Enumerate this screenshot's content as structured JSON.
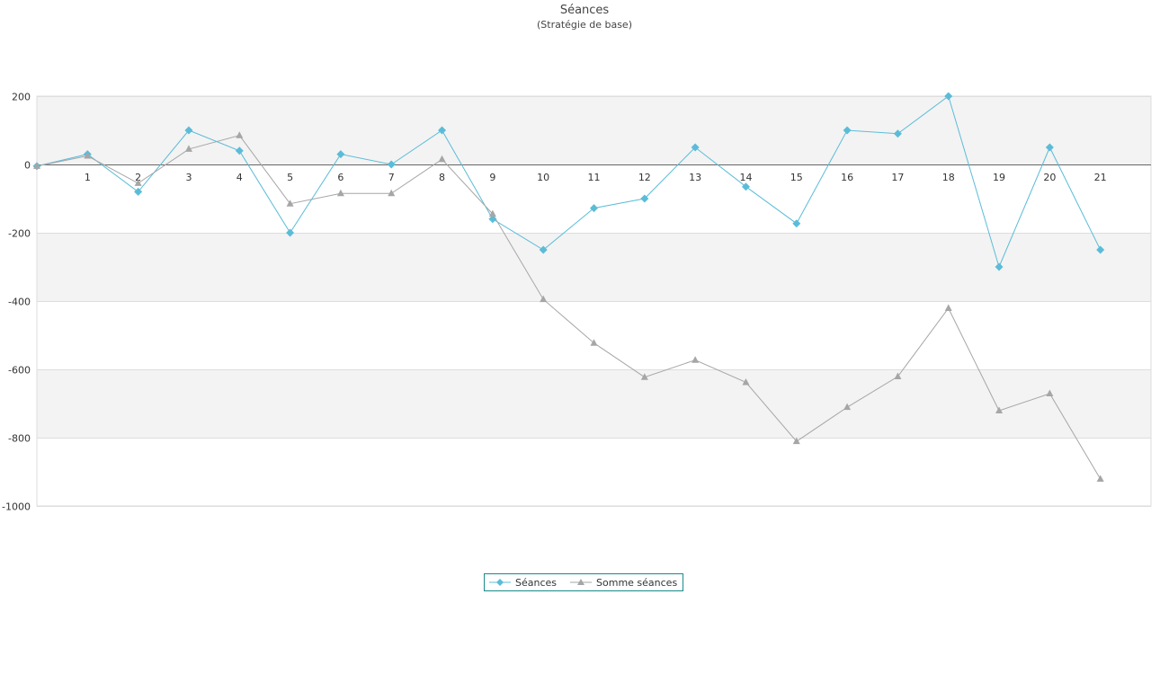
{
  "chart_data": {
    "type": "line",
    "title": "Séances",
    "subtitle": "(Stratégie de base)",
    "xlabel": "",
    "ylabel": "",
    "x": [
      0,
      1,
      2,
      3,
      4,
      5,
      6,
      7,
      8,
      9,
      10,
      11,
      12,
      13,
      14,
      15,
      16,
      17,
      18,
      19,
      20,
      21
    ],
    "x_tick_labels": [
      "1",
      "2",
      "3",
      "4",
      "5",
      "6",
      "7",
      "8",
      "9",
      "10",
      "11",
      "12",
      "13",
      "14",
      "15",
      "16",
      "17",
      "18",
      "19",
      "20",
      "21"
    ],
    "ylim": [
      -1000,
      200
    ],
    "y_ticks": [
      200,
      0,
      -200,
      -400,
      -600,
      -800,
      -1000
    ],
    "y_tick_labels": [
      "200",
      "0",
      "-200",
      "-400",
      "-600",
      "-800",
      "-1000"
    ],
    "grid": true,
    "legend_position": "bottom-center",
    "series": [
      {
        "name": "Séances",
        "marker": "diamond",
        "color": "#5bbcd8",
        "values": [
          -5,
          30,
          -80,
          100,
          40,
          -200,
          30,
          0,
          100,
          -160,
          -250,
          -128,
          -100,
          50,
          -65,
          -173,
          100,
          90,
          200,
          -300,
          50,
          -250
        ]
      },
      {
        "name": "Somme séances",
        "marker": "triangle",
        "color": "#a6a6a6",
        "values": [
          -5,
          25,
          -55,
          45,
          85,
          -115,
          -85,
          -85,
          15,
          -145,
          -395,
          -523,
          -623,
          -573,
          -638,
          -811,
          -711,
          -621,
          -421,
          -721,
          -671,
          -921
        ]
      }
    ]
  }
}
